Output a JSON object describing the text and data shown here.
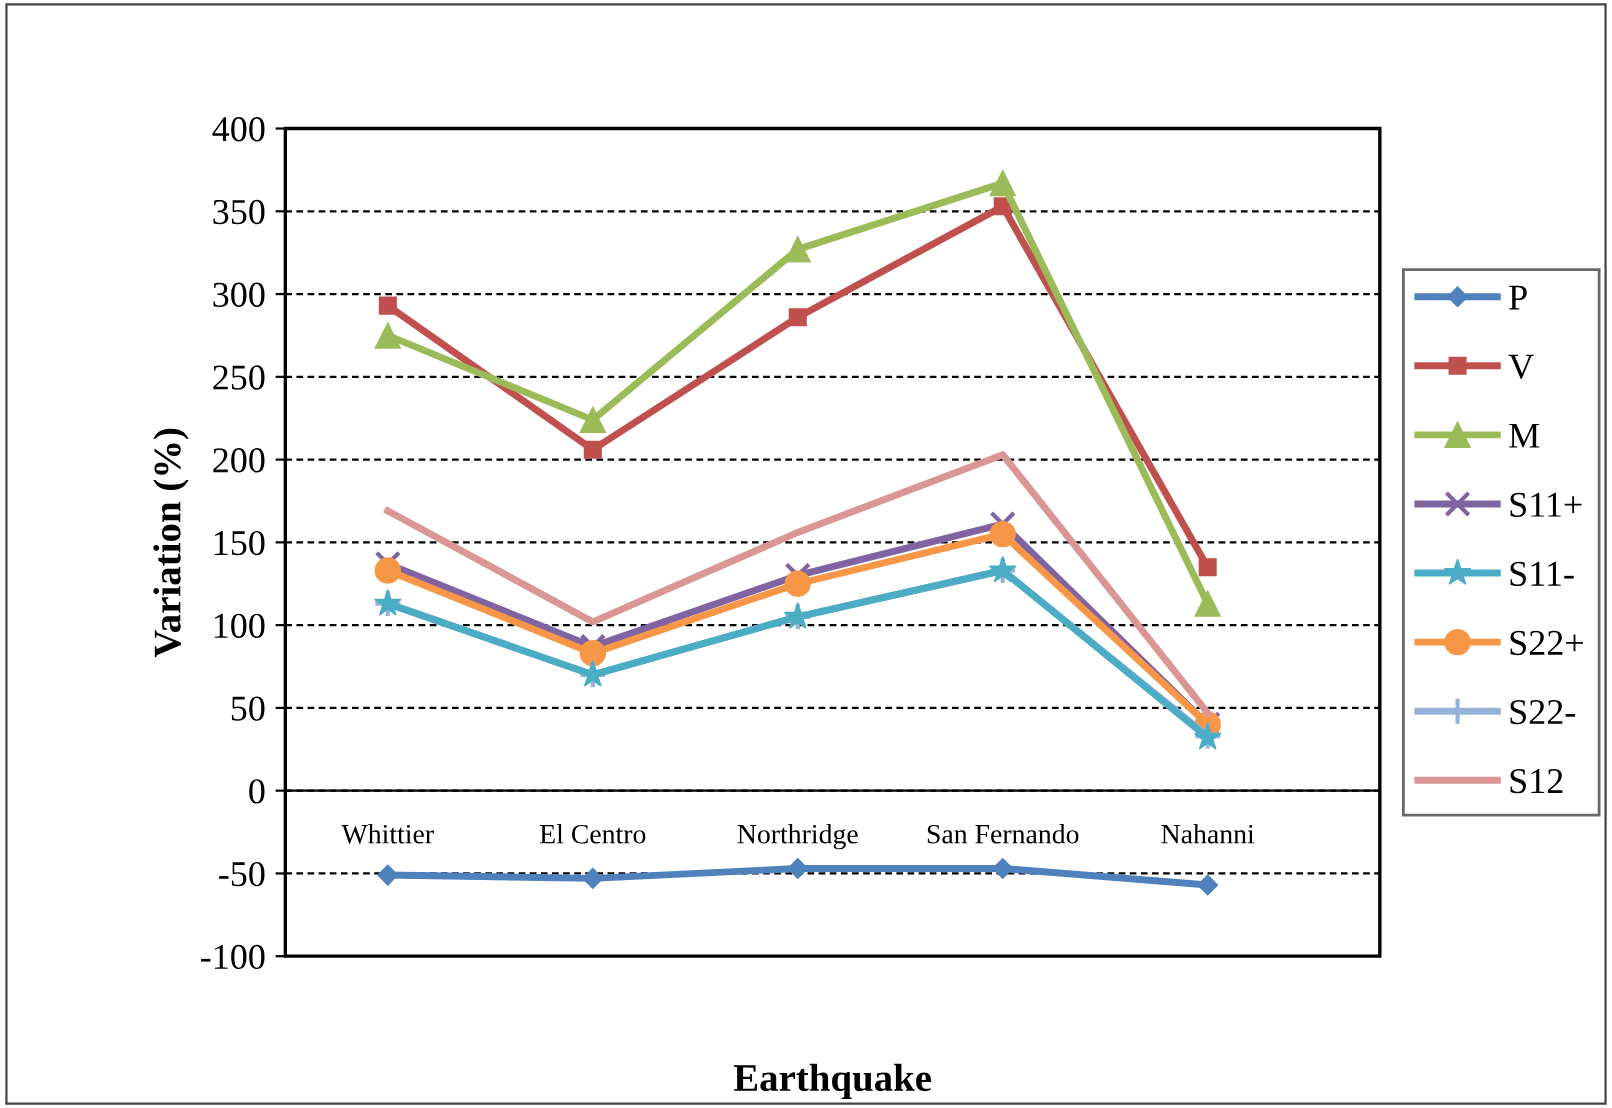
{
  "chart_data": {
    "type": "line",
    "xlabel": "Earthquake",
    "ylabel": "Variation (%)",
    "categories": [
      "Whittier",
      "El Centro",
      "Northridge",
      "San Fernando",
      "Nahanni"
    ],
    "ylim": [
      -100,
      400
    ],
    "yticks": [
      -100,
      -50,
      0,
      50,
      100,
      150,
      200,
      250,
      300,
      350,
      400
    ],
    "grid": "y",
    "legend": "right",
    "series": [
      {
        "name": "P",
        "color": "#4f81bd",
        "marker": "diamond",
        "values": [
          -51,
          -53,
          -47,
          -47,
          -57
        ]
      },
      {
        "name": "V",
        "color": "#c0504d",
        "marker": "square",
        "values": [
          293,
          206,
          286,
          353,
          135
        ]
      },
      {
        "name": "M",
        "color": "#9bbb59",
        "marker": "triangle",
        "values": [
          275,
          224,
          327,
          367,
          113
        ]
      },
      {
        "name": "S11+",
        "color": "#8064a2",
        "marker": "cross",
        "values": [
          137,
          87,
          130,
          161,
          40
        ]
      },
      {
        "name": "S11-",
        "color": "#4bacc6",
        "marker": "star",
        "values": [
          113,
          70,
          105,
          133,
          32
        ]
      },
      {
        "name": "S22+",
        "color": "#f79646",
        "marker": "circle",
        "values": [
          133,
          83,
          125,
          155,
          40
        ]
      },
      {
        "name": "S22-",
        "color": "#95b3d7",
        "marker": "plus",
        "values": [
          113,
          70,
          105,
          133,
          33
        ]
      },
      {
        "name": "S12",
        "color": "#d99694",
        "marker": "none",
        "values": [
          169,
          102,
          156,
          203,
          47
        ]
      }
    ]
  }
}
